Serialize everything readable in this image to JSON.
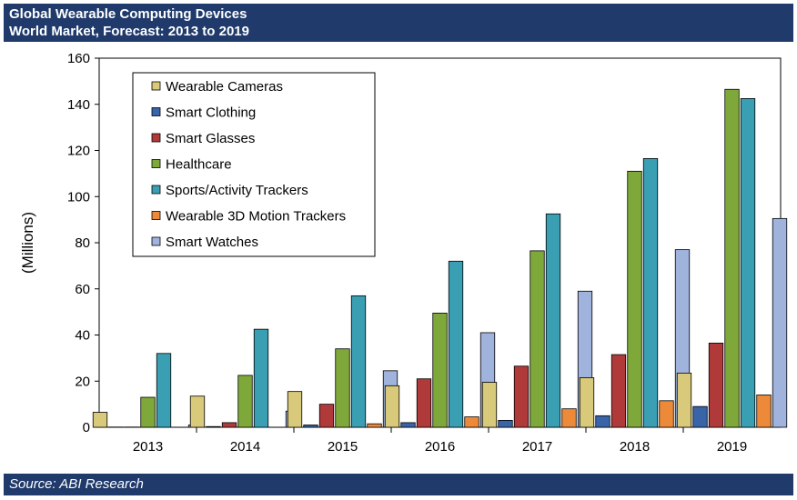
{
  "header": {
    "title": "Global Wearable Computing Devices",
    "subtitle": "World Market, Forecast: 2013 to 2019"
  },
  "footer": {
    "source": "Source: ABI Research"
  },
  "chart_data": {
    "type": "bar",
    "title": "Global Wearable Computing Devices",
    "subtitle": "World Market, Forecast: 2013 to 2019",
    "xlabel": "",
    "ylabel": "(Millions)",
    "ylim": [
      0,
      160
    ],
    "yticks": [
      0,
      20,
      40,
      60,
      80,
      100,
      120,
      140,
      160
    ],
    "grid": false,
    "legend_position": "top-left",
    "categories": [
      "2013",
      "2014",
      "2015",
      "2016",
      "2017",
      "2018",
      "2019"
    ],
    "series": [
      {
        "name": "Wearable Cameras",
        "color": "#d9c97a",
        "values": [
          6.5,
          13.5,
          15.5,
          18,
          19.5,
          21.5,
          23.5
        ]
      },
      {
        "name": "Smart Clothing",
        "color": "#3a64a8",
        "values": [
          0.1,
          0.3,
          1,
          2,
          3,
          5,
          9
        ]
      },
      {
        "name": "Smart Glasses",
        "color": "#b03a3a",
        "values": [
          0.1,
          2,
          10,
          21,
          26.5,
          31.5,
          36.5
        ]
      },
      {
        "name": "Healthcare",
        "color": "#7fa83a",
        "values": [
          13,
          22.5,
          34,
          49.5,
          76.5,
          111,
          146.5
        ]
      },
      {
        "name": "Sports/Activity Trackers",
        "color": "#3a9fb3",
        "values": [
          32,
          42.5,
          57,
          72,
          92.5,
          116.5,
          142.5
        ]
      },
      {
        "name": "Wearable 3D Motion Trackers",
        "color": "#ec8a3a",
        "values": [
          0,
          0,
          1.5,
          4.5,
          8,
          11.5,
          14
        ]
      },
      {
        "name": "Smart Watches",
        "color": "#9fb3dc",
        "values": [
          1,
          7,
          24.5,
          41,
          59,
          77,
          90.5
        ]
      }
    ]
  }
}
